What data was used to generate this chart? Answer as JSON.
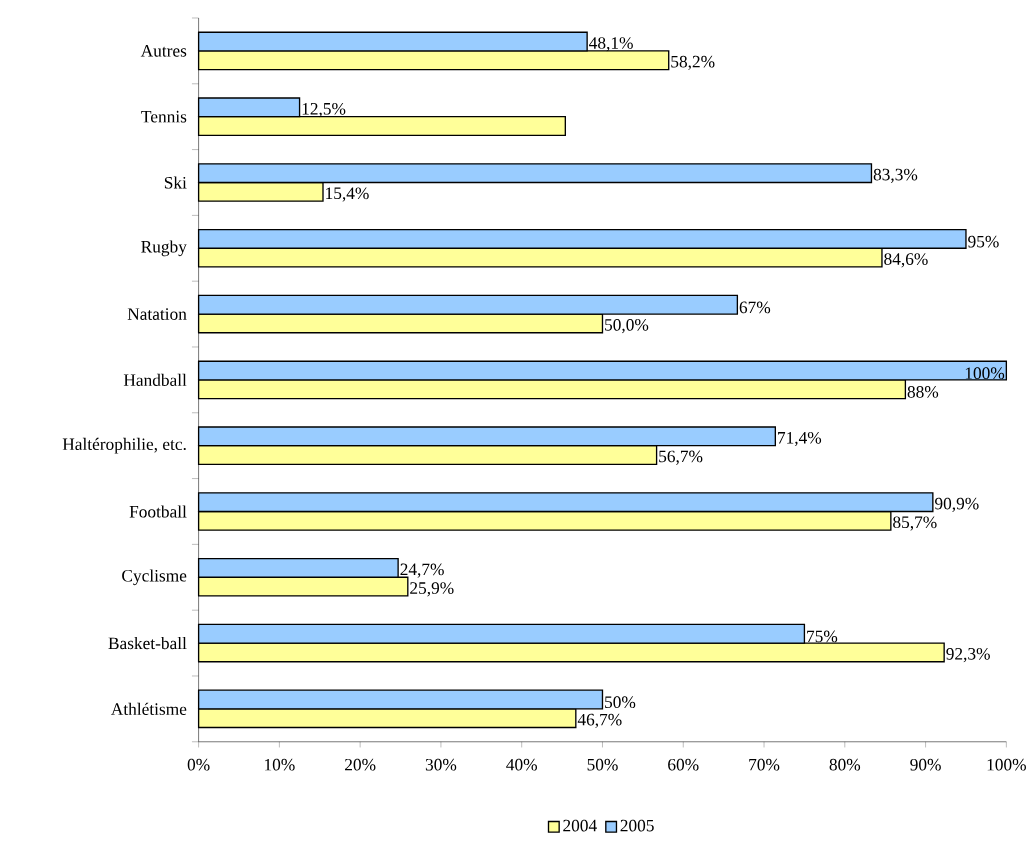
{
  "chart_data": {
    "type": "bar",
    "orientation": "horizontal",
    "categories": [
      "Autres",
      "Tennis",
      "Ski",
      "Rugby",
      "Natation",
      "Handball",
      "Haltérophilie, etc.",
      "Football",
      "Cyclisme",
      "Basket-ball",
      "Athlétisme"
    ],
    "series": [
      {
        "name": "2004",
        "color": "#ffff99",
        "values": [
          58.2,
          45.4,
          15.4,
          84.6,
          50.0,
          87.5,
          56.7,
          85.7,
          25.9,
          92.3,
          46.7
        ],
        "value_labels": [
          "58,2%",
          null,
          "15,4%",
          "84,6%",
          "50,0%",
          "88%",
          "56,7%",
          "85,7%",
          "25,9%",
          "92,3%",
          "46,7%"
        ]
      },
      {
        "name": "2005",
        "color": "#99ccff",
        "values": [
          48.1,
          12.5,
          83.3,
          95,
          66.7,
          100,
          71.4,
          90.9,
          24.7,
          75,
          50
        ],
        "value_labels": [
          "48,1%",
          "12,5%",
          "83,3%",
          "95%",
          "67%",
          "100%",
          "71,4%",
          "90,9%",
          "24,7%",
          "75%",
          "50%"
        ]
      }
    ],
    "xlim": [
      0,
      100
    ],
    "xticks": [
      {
        "value": 0,
        "label": "0%"
      },
      {
        "value": 10,
        "label": "10%"
      },
      {
        "value": 20,
        "label": "20%"
      },
      {
        "value": 30,
        "label": "30%"
      },
      {
        "value": 40,
        "label": "40%"
      },
      {
        "value": 50,
        "label": "50%"
      },
      {
        "value": 60,
        "label": "60%"
      },
      {
        "value": 70,
        "label": "70%"
      },
      {
        "value": 80,
        "label": "80%"
      },
      {
        "value": 90,
        "label": "90%"
      },
      {
        "value": 100,
        "label": "100%"
      }
    ],
    "grid": false,
    "legend": "bottom"
  }
}
